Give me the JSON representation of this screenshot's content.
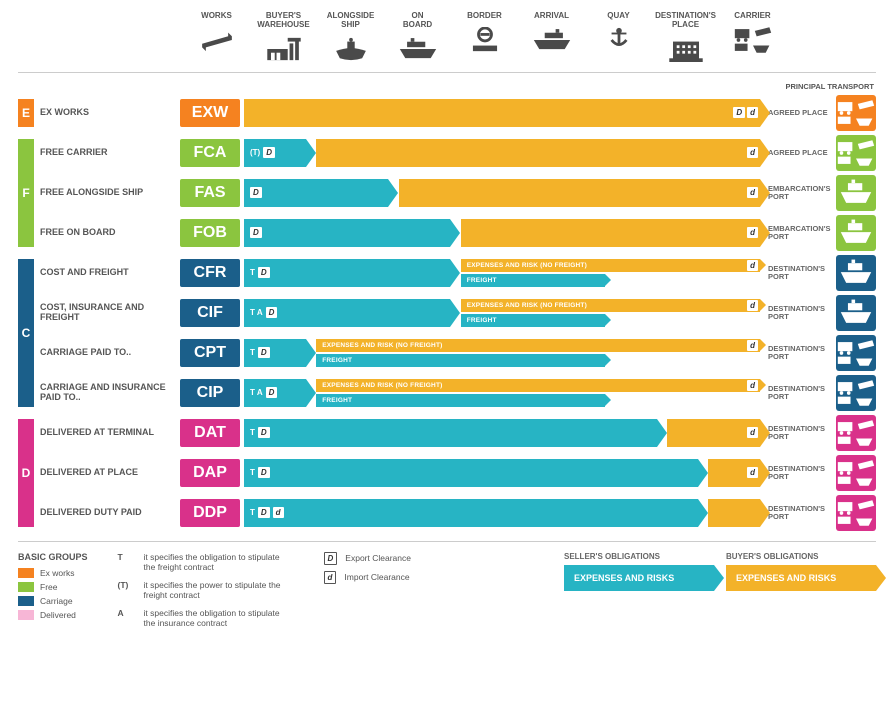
{
  "colors": {
    "orange": "#f58220",
    "green": "#8bc53f",
    "blue": "#1b5f8a",
    "pink": "#d9318a",
    "teal": "#27b4c4",
    "yellow": "#f3b229",
    "icon_gray": "#4a4a4a",
    "text": "#555555"
  },
  "headers": [
    {
      "label": "WORKS",
      "icon": "pallet"
    },
    {
      "label": "BUYER'S WAREHOUSE",
      "icon": "warehouse"
    },
    {
      "label": "ALONGSIDE SHIP",
      "icon": "ship-side"
    },
    {
      "label": "ON BOARD",
      "icon": "ship-board"
    },
    {
      "label": "BORDER",
      "icon": "border"
    },
    {
      "label": "ARRIVAL",
      "icon": "ship-arrive"
    },
    {
      "label": "QUAY",
      "icon": "quay"
    },
    {
      "label": "DESTINATION'S PLACE",
      "icon": "building"
    },
    {
      "label": "CARRIER",
      "icon": "multi"
    }
  ],
  "principal_transport_label": "PRINCIPAL TRANSPORT",
  "groups": [
    {
      "letter": "E",
      "color": "#f58220",
      "rows": 1,
      "start": 0
    },
    {
      "letter": "F",
      "color": "#8bc53f",
      "rows": 3,
      "start": 1
    },
    {
      "letter": "C",
      "color": "#1b5f8a",
      "rows": 4,
      "start": 4
    },
    {
      "letter": "D",
      "color": "#d9318a",
      "rows": 3,
      "start": 8
    }
  ],
  "terms": [
    {
      "code": "EXW",
      "name": "EX WORKS",
      "code_color": "#f58220",
      "bars": [
        {
          "type": "full",
          "color": "#f3b229",
          "start": 0,
          "end": 100,
          "items": [],
          "right_badges": [
            "D",
            "d"
          ]
        }
      ],
      "dest": "AGREED PLACE",
      "mode_color": "#f58220",
      "mode": "multi"
    },
    {
      "code": "FCA",
      "name": "FREE CARRIER",
      "code_color": "#8bc53f",
      "bars": [
        {
          "type": "full",
          "color": "#27b4c4",
          "start": 0,
          "end": 12,
          "items": [
            "(T)",
            "D"
          ]
        },
        {
          "type": "full",
          "color": "#f3b229",
          "start": 14,
          "end": 100,
          "right_badges": [
            "d"
          ]
        }
      ],
      "dest": "AGREED PLACE",
      "mode_color": "#8bc53f",
      "mode": "multi"
    },
    {
      "code": "FAS",
      "name": "FREE ALONGSIDE SHIP",
      "code_color": "#8bc53f",
      "bars": [
        {
          "type": "full",
          "color": "#27b4c4",
          "start": 0,
          "end": 28,
          "items": [
            "",
            "D"
          ]
        },
        {
          "type": "full",
          "color": "#f3b229",
          "start": 30,
          "end": 100,
          "right_badges": [
            "d"
          ]
        }
      ],
      "dest": "EMBARCATION'S PORT",
      "mode_color": "#8bc53f",
      "mode": "ship"
    },
    {
      "code": "FOB",
      "name": "FREE ON BOARD",
      "code_color": "#8bc53f",
      "bars": [
        {
          "type": "full",
          "color": "#27b4c4",
          "start": 0,
          "end": 40,
          "items": [
            "",
            "D"
          ]
        },
        {
          "type": "full",
          "color": "#f3b229",
          "start": 42,
          "end": 100,
          "right_badges": [
            "d"
          ]
        }
      ],
      "dest": "EMBARCATION'S PORT",
      "mode_color": "#8bc53f",
      "mode": "ship"
    },
    {
      "code": "CFR",
      "name": "COST AND FREIGHT",
      "code_color": "#1b5f8a",
      "bars": [
        {
          "type": "full",
          "color": "#27b4c4",
          "start": 0,
          "end": 40,
          "items": [
            "T",
            "D"
          ]
        },
        {
          "type": "half-top",
          "color": "#f3b229",
          "start": 42,
          "end": 100,
          "text": "EXPENSES AND RISK (NO FREIGHT)",
          "right_badges": [
            "d"
          ]
        },
        {
          "type": "half-bot",
          "color": "#27b4c4",
          "start": 42,
          "end": 70,
          "text": "FREIGHT"
        }
      ],
      "dest": "DESTINATION'S PORT",
      "mode_color": "#1b5f8a",
      "mode": "ship"
    },
    {
      "code": "CIF",
      "name": "COST, INSURANCE AND FREIGHT",
      "code_color": "#1b5f8a",
      "bars": [
        {
          "type": "full",
          "color": "#27b4c4",
          "start": 0,
          "end": 40,
          "items": [
            "T A",
            "D"
          ]
        },
        {
          "type": "half-top",
          "color": "#f3b229",
          "start": 42,
          "end": 100,
          "text": "EXPENSES AND RISK (NO FREIGHT)",
          "right_badges": [
            "d"
          ]
        },
        {
          "type": "half-bot",
          "color": "#27b4c4",
          "start": 42,
          "end": 70,
          "text": "FREIGHT"
        }
      ],
      "dest": "DESTINATION'S PORT",
      "mode_color": "#1b5f8a",
      "mode": "ship"
    },
    {
      "code": "CPT",
      "name": "CARRIAGE PAID TO..",
      "code_color": "#1b5f8a",
      "bars": [
        {
          "type": "full",
          "color": "#27b4c4",
          "start": 0,
          "end": 12,
          "items": [
            "T",
            "D"
          ]
        },
        {
          "type": "half-top",
          "color": "#f3b229",
          "start": 14,
          "end": 100,
          "text": "EXPENSES AND RISK (NO FREIGHT)",
          "right_badges": [
            "d"
          ]
        },
        {
          "type": "half-bot",
          "color": "#27b4c4",
          "start": 14,
          "end": 70,
          "text": "FREIGHT"
        }
      ],
      "dest": "DESTINATION'S PORT",
      "mode_color": "#1b5f8a",
      "mode": "multi"
    },
    {
      "code": "CIP",
      "name": "CARRIAGE AND INSURANCE PAID TO..",
      "code_color": "#1b5f8a",
      "bars": [
        {
          "type": "full",
          "color": "#27b4c4",
          "start": 0,
          "end": 12,
          "items": [
            "T A",
            "D"
          ]
        },
        {
          "type": "half-top",
          "color": "#f3b229",
          "start": 14,
          "end": 100,
          "text": "EXPENSES AND RISK (NO FREIGHT)",
          "right_badges": [
            "d"
          ]
        },
        {
          "type": "half-bot",
          "color": "#27b4c4",
          "start": 14,
          "end": 70,
          "text": "FREIGHT"
        }
      ],
      "dest": "DESTINATION'S PORT",
      "mode_color": "#1b5f8a",
      "mode": "multi"
    },
    {
      "code": "DAT",
      "name": "DELIVERED AT TERMINAL",
      "code_color": "#d9318a",
      "bars": [
        {
          "type": "full",
          "color": "#27b4c4",
          "start": 0,
          "end": 80,
          "items": [
            "T",
            "D"
          ]
        },
        {
          "type": "full",
          "color": "#f3b229",
          "start": 82,
          "end": 100,
          "right_badges": [
            "d"
          ]
        }
      ],
      "dest": "DESTINATION'S PORT",
      "mode_color": "#d9318a",
      "mode": "multi"
    },
    {
      "code": "DAP",
      "name": "DELIVERED AT PLACE",
      "code_color": "#d9318a",
      "bars": [
        {
          "type": "full",
          "color": "#27b4c4",
          "start": 0,
          "end": 88,
          "items": [
            "T",
            "D"
          ]
        },
        {
          "type": "full",
          "color": "#f3b229",
          "start": 90,
          "end": 100,
          "right_badges": [
            "d"
          ]
        }
      ],
      "dest": "DESTINATION'S PORT",
      "mode_color": "#d9318a",
      "mode": "multi"
    },
    {
      "code": "DDP",
      "name": "DELIVERED DUTY PAID",
      "code_color": "#d9318a",
      "bars": [
        {
          "type": "full",
          "color": "#27b4c4",
          "start": 0,
          "end": 88,
          "items": [
            "T",
            "D",
            "d"
          ]
        },
        {
          "type": "full",
          "color": "#f3b229",
          "start": 90,
          "end": 100
        }
      ],
      "dest": "DESTINATION'S PORT",
      "mode_color": "#d9318a",
      "mode": "multi"
    }
  ],
  "legend": {
    "basic_groups_title": "BASIC GROUPS",
    "basic_groups": [
      {
        "color": "#f58220",
        "label": "Ex works"
      },
      {
        "color": "#8bc53f",
        "label": "Free"
      },
      {
        "color": "#1b5f8a",
        "label": "Carriage"
      },
      {
        "color": "#f7b6d6",
        "label": "Delivered"
      }
    ],
    "symbols": [
      {
        "key": "T",
        "desc": "it specifies the obligation to stipulate the freight contract"
      },
      {
        "key": "(T)",
        "desc": "it specifies the power to stipulate the freight contract"
      },
      {
        "key": "A",
        "desc": "it specifies the obligation to stipulate the insurance contract"
      }
    ],
    "clearance": [
      {
        "badge": "D",
        "label": "Export Clearance"
      },
      {
        "badge": "d",
        "label": "Import Clearance"
      }
    ],
    "seller_title": "SELLER'S OBLIGATIONS",
    "buyer_title": "BUYER'S OBLIGATIONS",
    "oblig_text": "EXPENSES AND RISKS"
  }
}
